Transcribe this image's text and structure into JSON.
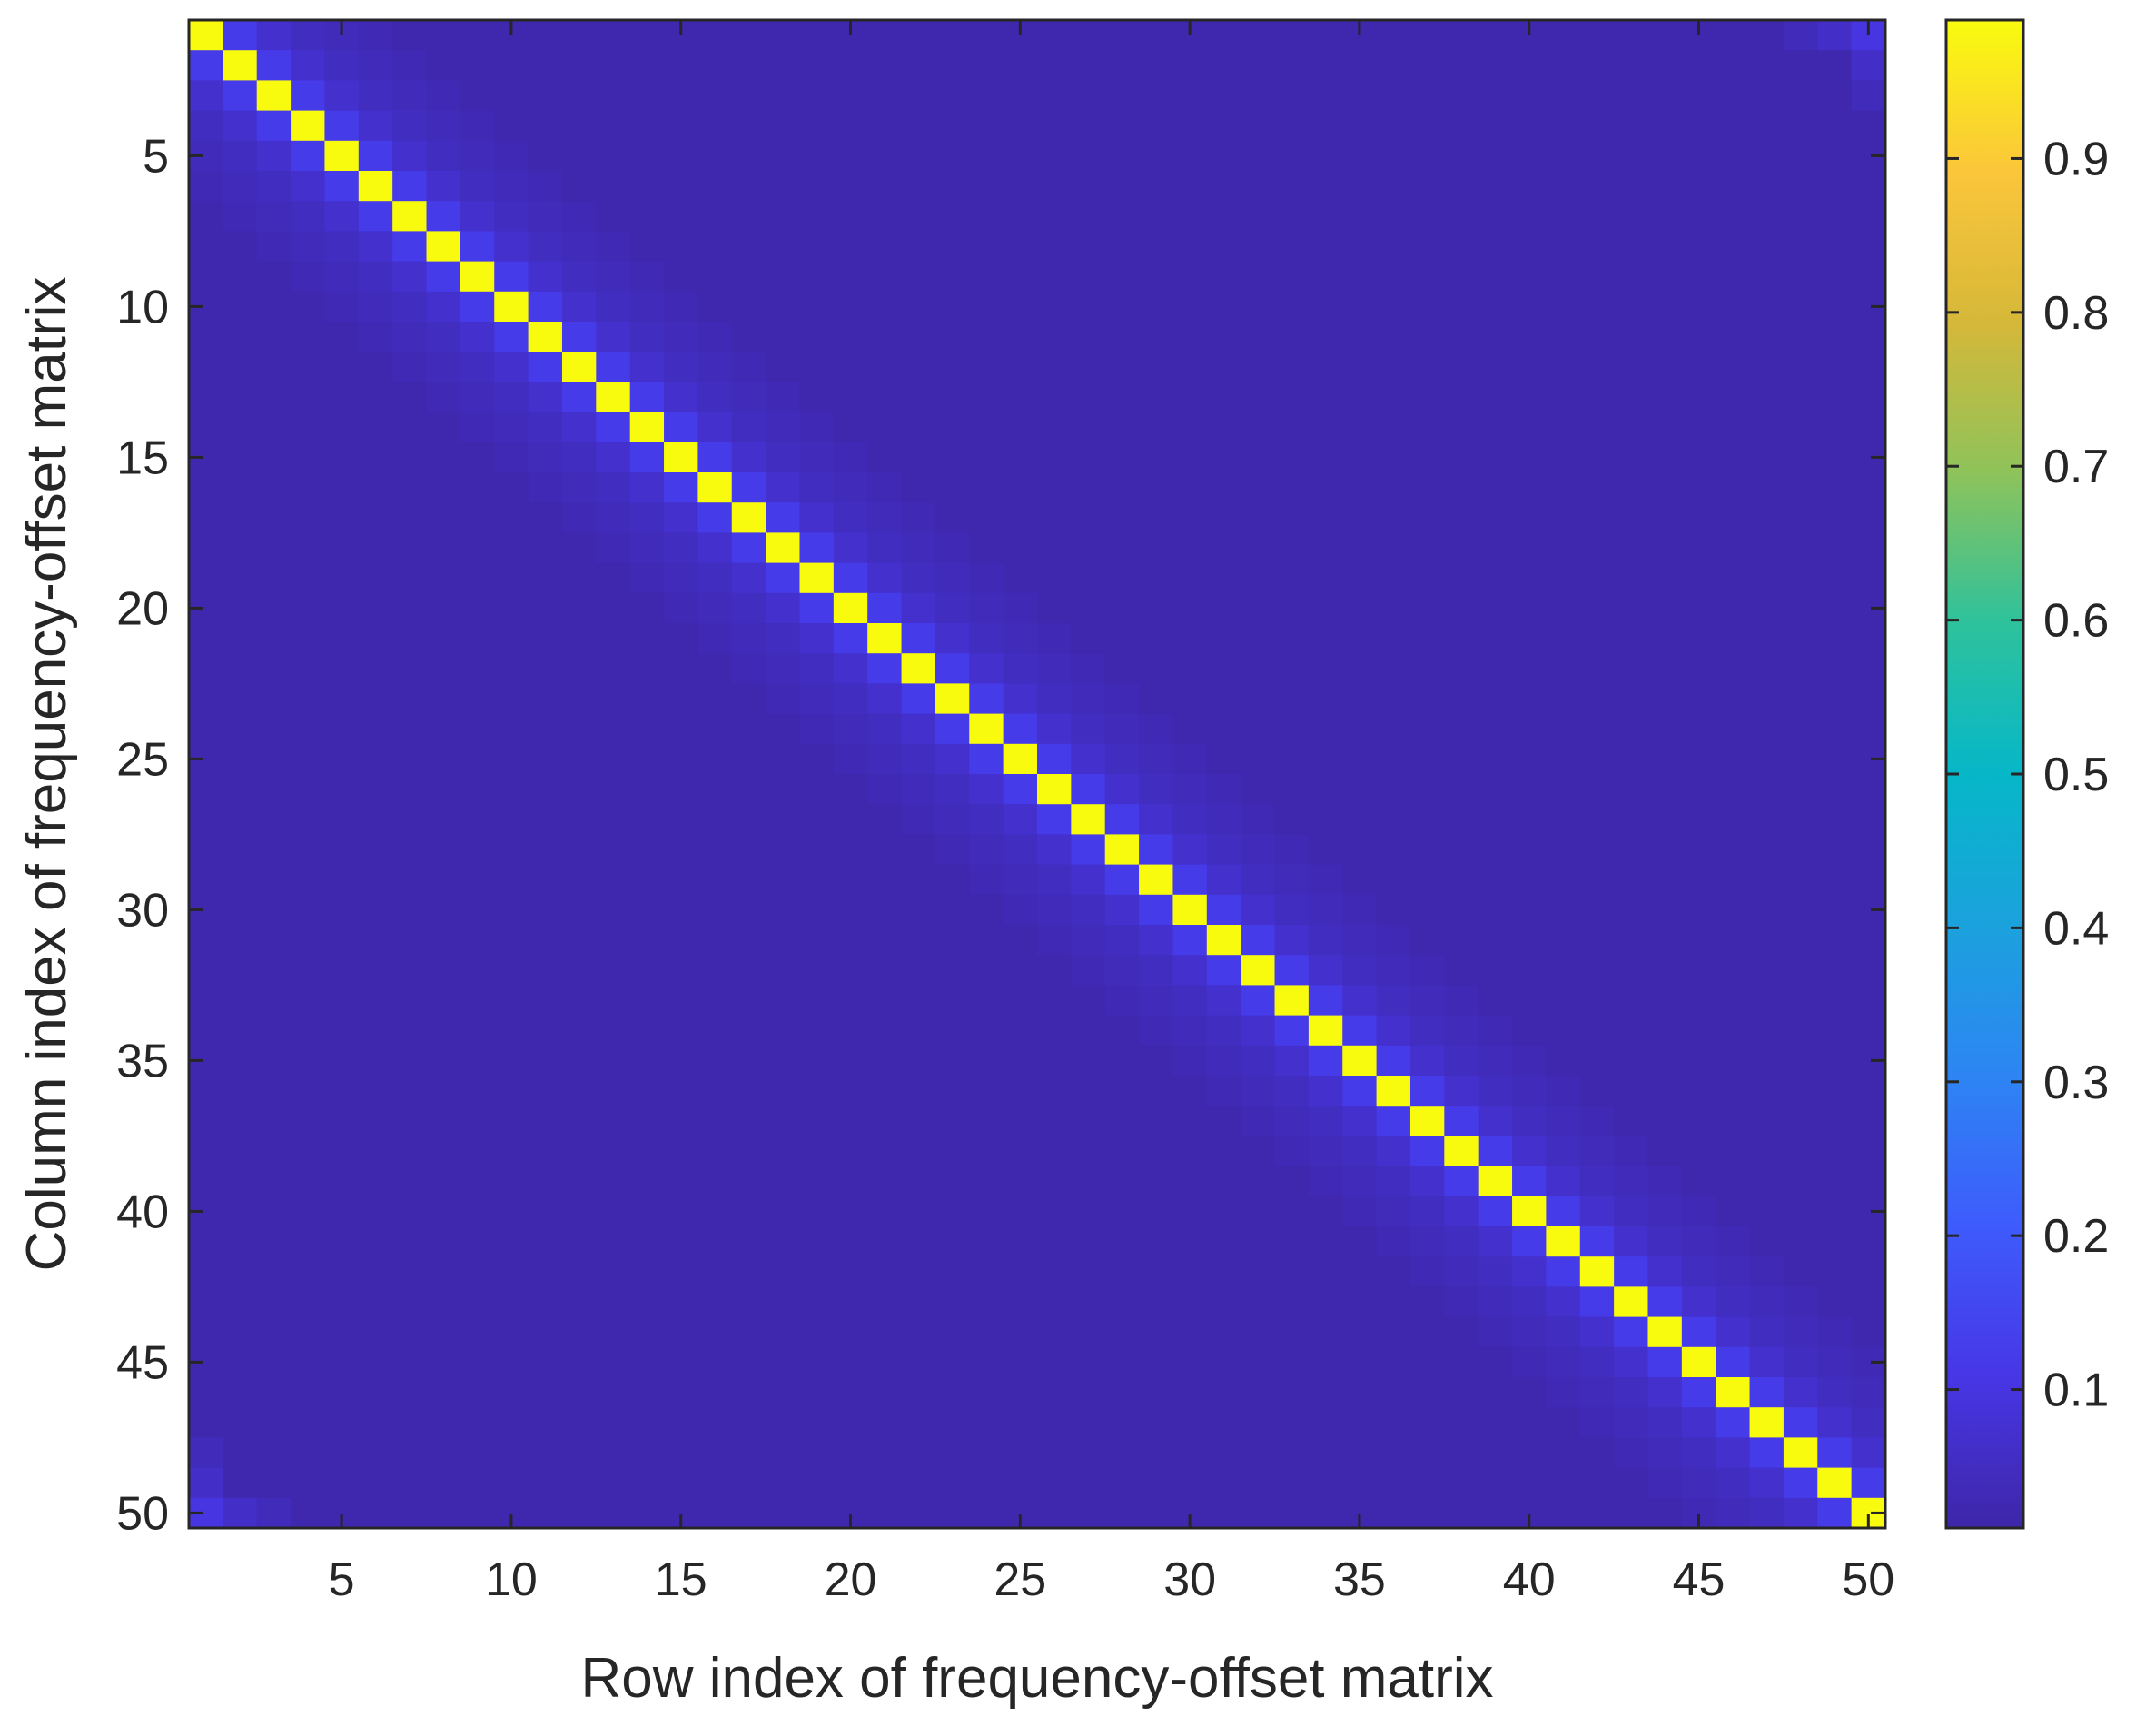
{
  "chart_data": {
    "type": "heatmap",
    "title": "",
    "xlabel": "Row index of frequency-offset matrix",
    "ylabel": "Column index of frequency-offset matrix",
    "rows": 50,
    "cols": 50,
    "x_ticks": [
      "5",
      "10",
      "15",
      "20",
      "25",
      "30",
      "35",
      "40",
      "45",
      "50"
    ],
    "y_ticks": [
      "5",
      "10",
      "15",
      "20",
      "25",
      "30",
      "35",
      "40",
      "45",
      "50"
    ],
    "xlim": [
      0.5,
      50.5
    ],
    "ylim": [
      0.5,
      50.5
    ],
    "y_reversed": true,
    "colormap": "parula",
    "colorbar": {
      "range": [
        0.01,
        0.99
      ],
      "ticks": [
        "0.1",
        "0.2",
        "0.3",
        "0.4",
        "0.5",
        "0.6",
        "0.7",
        "0.8",
        "0.9"
      ]
    },
    "matrix_description": {
      "diagonal_value": 0.99,
      "background_value": 0.02,
      "near_diagonal_decay": [
        0.12,
        0.07,
        0.05,
        0.04,
        0.03
      ],
      "corner_wrap_values": [
        0.1,
        0.06,
        0.04
      ]
    },
    "colors": {
      "low": "#3e26a8",
      "mid": "#17c1b1",
      "high": "#f9fb0e"
    }
  }
}
